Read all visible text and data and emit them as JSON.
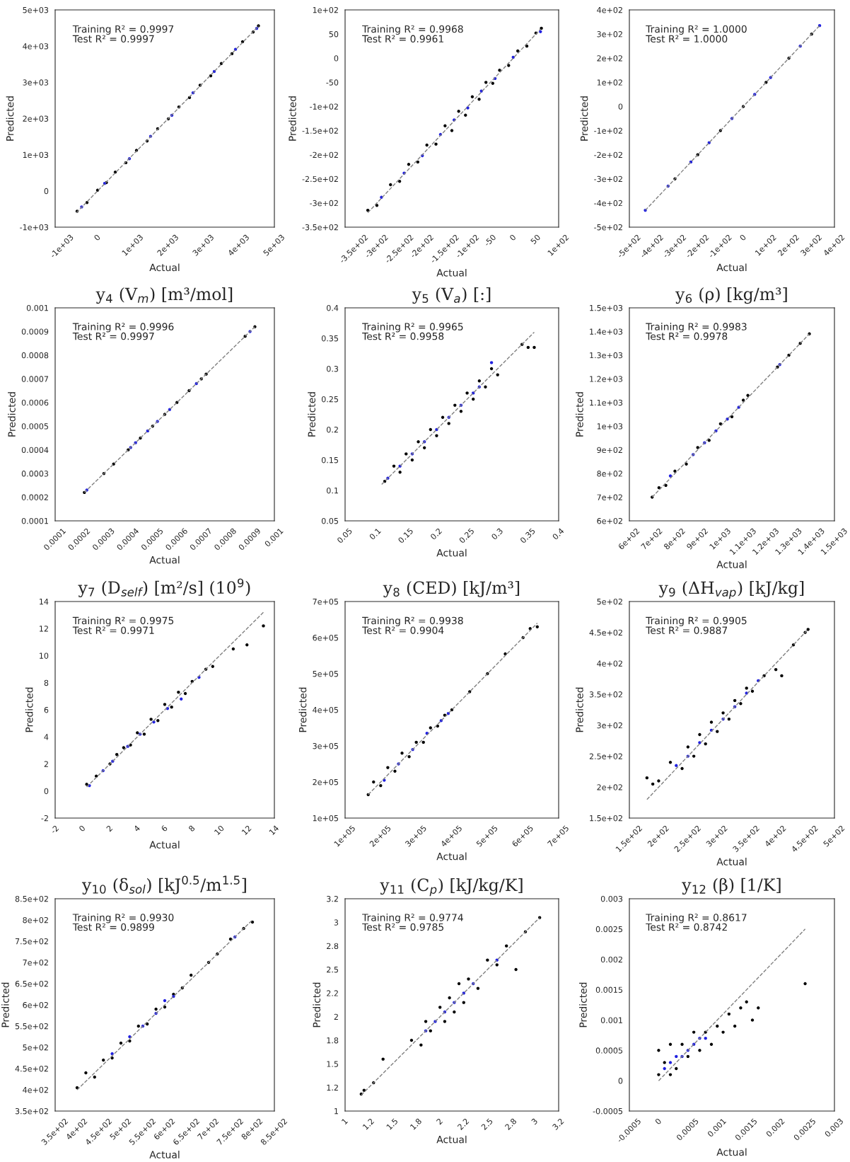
{
  "chart_data": [
    {
      "type": "scatter",
      "xlabel": "Actual",
      "ylabel": "Predicted",
      "marker": "circle",
      "grid": false,
      "legend": false,
      "xlim": [
        -1200,
        5000
      ],
      "ylim": [
        -1000,
        5000
      ],
      "xticks": [
        {
          "value": -1000,
          "label": "-1e+03"
        },
        0,
        {
          "value": 1000,
          "label": "1e+03"
        },
        {
          "value": 2000,
          "label": "2e+03"
        },
        {
          "value": 3000,
          "label": "3e+03"
        },
        {
          "value": 4000,
          "label": "4e+03"
        },
        {
          "value": 5000,
          "label": "5e+03"
        }
      ],
      "yticks": [
        {
          "value": -1000,
          "label": "-1e+03"
        },
        0,
        {
          "value": 1000,
          "label": "1e+03"
        },
        {
          "value": 2000,
          "label": "2e+03"
        },
        {
          "value": 3000,
          "label": "3e+03"
        },
        {
          "value": 4000,
          "label": "4e+03"
        },
        {
          "value": 5000,
          "label": "5e+03"
        }
      ],
      "annotations": [
        "Training R² = 0.9997",
        "Test R² = 0.9997"
      ],
      "series": [
        {
          "type": "line",
          "color": "#808080",
          "line_style": "dashed",
          "marker": "none",
          "x": [
            -600,
            4560
          ],
          "values": [
            -600,
            4560
          ]
        },
        {
          "color": "#000000",
          "x": [
            -580,
            -300,
            0,
            250,
            500,
            800,
            1100,
            1400,
            1700,
            2000,
            2300,
            2600,
            2900,
            3200,
            3500,
            3800,
            4100,
            4400,
            4550
          ],
          "values": [
            -560,
            -320,
            20,
            230,
            520,
            780,
            1120,
            1380,
            1720,
            1990,
            2320,
            2580,
            2920,
            3180,
            3520,
            3790,
            4120,
            4390,
            4560
          ]
        },
        {
          "color": "#2020e0",
          "x": [
            -450,
            200,
            900,
            1500,
            2100,
            2700,
            3300,
            3900,
            4500
          ],
          "values": [
            -440,
            210,
            890,
            1510,
            2090,
            2710,
            3300,
            3910,
            4490
          ]
        }
      ]
    },
    {
      "type": "scatter",
      "xlabel": "Actual",
      "ylabel": "Predicted",
      "marker": "circle",
      "grid": false,
      "legend": false,
      "xlim": [
        -370,
        100
      ],
      "ylim": [
        -350,
        100
      ],
      "xticks": [
        {
          "value": -350,
          "label": "-3.5e+02"
        },
        {
          "value": -300,
          "label": "-3e+02"
        },
        {
          "value": -250,
          "label": "-2.5e+02"
        },
        {
          "value": -200,
          "label": "-2e+02"
        },
        {
          "value": -150,
          "label": "-1.5e+02"
        },
        {
          "value": -100,
          "label": "-1e+02"
        },
        -50,
        0,
        50,
        {
          "value": 100,
          "label": "1e+02"
        }
      ],
      "yticks": [
        {
          "value": -350,
          "label": "-3.5e+02"
        },
        {
          "value": -300,
          "label": "-3e+02"
        },
        {
          "value": -250,
          "label": "-2.5e+02"
        },
        {
          "value": -200,
          "label": "-2e+02"
        },
        {
          "value": -150,
          "label": "-1.5e+02"
        },
        {
          "value": -100,
          "label": "-1e+02"
        },
        -50,
        0,
        50,
        {
          "value": 100,
          "label": "1e+02"
        }
      ],
      "annotations": [
        "Training R² = 0.9968",
        "Test R² = 0.9961"
      ],
      "series": [
        {
          "type": "line",
          "color": "#808080",
          "line_style": "dashed",
          "marker": "none",
          "x": [
            -320,
            60
          ],
          "values": [
            -320,
            60
          ]
        },
        {
          "color": "#000000",
          "x": [
            -320,
            -300,
            -270,
            -250,
            -230,
            -210,
            -190,
            -170,
            -150,
            -135,
            -120,
            -105,
            -90,
            -75,
            -60,
            -45,
            -30,
            -10,
            10,
            30,
            50,
            62
          ],
          "values": [
            -315,
            -305,
            -262,
            -255,
            -220,
            -215,
            -180,
            -178,
            -140,
            -150,
            -110,
            -118,
            -80,
            -85,
            -50,
            -52,
            -25,
            -15,
            15,
            25,
            52,
            62
          ]
        },
        {
          "color": "#2020e0",
          "x": [
            -290,
            -240,
            -200,
            -160,
            -130,
            -100,
            -70,
            -40,
            0,
            60
          ],
          "values": [
            -288,
            -238,
            -202,
            -158,
            -128,
            -103,
            -68,
            -42,
            2,
            55
          ]
        }
      ]
    },
    {
      "type": "scatter",
      "xlabel": "Actual",
      "ylabel": "Predicted",
      "marker": "circle",
      "grid": false,
      "legend": false,
      "xlim": [
        -500,
        400
      ],
      "ylim": [
        -500,
        400
      ],
      "xticks": [
        {
          "value": -500,
          "label": "-5e+02"
        },
        {
          "value": -400,
          "label": "-4e+02"
        },
        {
          "value": -300,
          "label": "-3e+02"
        },
        {
          "value": -200,
          "label": "-2e+02"
        },
        {
          "value": -100,
          "label": "-1e+02"
        },
        0,
        {
          "value": 100,
          "label": "1e+02"
        },
        {
          "value": 200,
          "label": "2e+02"
        },
        {
          "value": 300,
          "label": "3e+02"
        },
        {
          "value": 400,
          "label": "4e+02"
        }
      ],
      "yticks": [
        {
          "value": -500,
          "label": "-5e+02"
        },
        {
          "value": -400,
          "label": "-4e+02"
        },
        {
          "value": -300,
          "label": "-3e+02"
        },
        {
          "value": -200,
          "label": "-2e+02"
        },
        {
          "value": -100,
          "label": "-1e+02"
        },
        0,
        {
          "value": 100,
          "label": "1e+02"
        },
        {
          "value": 200,
          "label": "2e+02"
        },
        {
          "value": 300,
          "label": "3e+02"
        },
        {
          "value": 400,
          "label": "4e+02"
        }
      ],
      "annotations": [
        "Training R² = 1.0000",
        "Test R² = 1.0000"
      ],
      "series": [
        {
          "type": "line",
          "color": "#808080",
          "line_style": "dashed",
          "marker": "none",
          "x": [
            -430,
            335
          ],
          "values": [
            -430,
            335
          ]
        },
        {
          "color": "#000000",
          "x": [
            -300,
            -200,
            -100,
            0,
            100,
            200,
            300
          ],
          "values": [
            -300,
            -200,
            -100,
            0,
            100,
            200,
            300
          ]
        },
        {
          "color": "#2020e0",
          "x": [
            -430,
            -330,
            -230,
            -150,
            -50,
            50,
            120,
            250,
            335
          ],
          "values": [
            -430,
            -330,
            -230,
            -150,
            -50,
            50,
            120,
            250,
            335
          ]
        }
      ]
    },
    {
      "type": "scatter",
      "title": "y$_{4}$ (V$_{m}$) [m³/mol]",
      "xlabel": "Actual",
      "ylabel": "Predicted",
      "marker": "circle",
      "grid": false,
      "legend": false,
      "xlim": [
        0.0001,
        0.001
      ],
      "ylim": [
        0.0001,
        0.001
      ],
      "xticks": [
        0.0001,
        0.0002,
        0.0003,
        0.0004,
        0.0005,
        0.0006,
        0.0007,
        0.0008,
        0.0009,
        0.001
      ],
      "yticks": [
        0.0001,
        0.0002,
        0.0003,
        0.0004,
        0.0005,
        0.0006,
        0.0007,
        0.0008,
        0.0009,
        0.001
      ],
      "annotations": [
        "Training R² = 0.9996",
        "Test R² = 0.9997"
      ],
      "series": [
        {
          "type": "line",
          "color": "#808080",
          "line_style": "dashed",
          "marker": "none",
          "x": [
            0.00022,
            0.00092
          ],
          "values": [
            0.00022,
            0.00092
          ]
        },
        {
          "color": "#000000",
          "x": [
            0.00022,
            0.0003,
            0.00034,
            0.0004,
            0.00045,
            0.0005,
            0.00055,
            0.0006,
            0.00065,
            0.0007,
            0.00072,
            0.00088,
            0.00092
          ],
          "values": [
            0.00022,
            0.0003,
            0.00034,
            0.0004,
            0.00045,
            0.0005,
            0.00055,
            0.0006,
            0.00065,
            0.0007,
            0.00072,
            0.00088,
            0.00092
          ]
        },
        {
          "color": "#2020e0",
          "x": [
            0.00023,
            0.00041,
            0.00043,
            0.00048,
            0.00052,
            0.00057,
            0.00068,
            0.0009
          ],
          "values": [
            0.00023,
            0.00041,
            0.00043,
            0.00048,
            0.00052,
            0.00057,
            0.00068,
            0.0009
          ]
        }
      ]
    },
    {
      "type": "scatter",
      "title": "y$_{5}$ (V$_{a}$) [:]",
      "xlabel": "Actual",
      "ylabel": "Predicted",
      "marker": "circle",
      "grid": false,
      "legend": false,
      "xlim": [
        0.05,
        0.4
      ],
      "ylim": [
        0.05,
        0.4
      ],
      "xticks": [
        0.05,
        0.1,
        0.15,
        0.2,
        0.25,
        0.3,
        0.35,
        0.4
      ],
      "yticks": [
        0.05,
        0.1,
        0.15,
        0.2,
        0.25,
        0.3,
        0.35,
        0.4
      ],
      "annotations": [
        "Training R² = 0.9965",
        "Test R² = 0.9958"
      ],
      "series": [
        {
          "type": "line",
          "color": "#808080",
          "line_style": "dashed",
          "marker": "none",
          "x": [
            0.11,
            0.36
          ],
          "values": [
            0.11,
            0.36
          ]
        },
        {
          "color": "#000000",
          "x": [
            0.115,
            0.13,
            0.14,
            0.15,
            0.16,
            0.17,
            0.18,
            0.19,
            0.2,
            0.21,
            0.22,
            0.23,
            0.24,
            0.25,
            0.26,
            0.27,
            0.28,
            0.29,
            0.3,
            0.34,
            0.35,
            0.36
          ],
          "values": [
            0.115,
            0.14,
            0.13,
            0.16,
            0.15,
            0.18,
            0.17,
            0.2,
            0.19,
            0.22,
            0.21,
            0.24,
            0.23,
            0.26,
            0.25,
            0.28,
            0.27,
            0.3,
            0.29,
            0.34,
            0.335,
            0.335
          ]
        },
        {
          "color": "#2020e0",
          "x": [
            0.12,
            0.14,
            0.16,
            0.18,
            0.2,
            0.22,
            0.24,
            0.26,
            0.27,
            0.29
          ],
          "values": [
            0.12,
            0.14,
            0.16,
            0.18,
            0.2,
            0.22,
            0.24,
            0.26,
            0.27,
            0.31
          ]
        }
      ]
    },
    {
      "type": "scatter",
      "title": "y$_{6}$ (ρ) [kg/m³]",
      "xlabel": "Actual",
      "ylabel": "Predicted",
      "marker": "circle",
      "grid": false,
      "legend": false,
      "xlim": [
        600,
        1500
      ],
      "ylim": [
        600,
        1500
      ],
      "xticks": [
        {
          "value": 600,
          "label": "6e+02"
        },
        {
          "value": 700,
          "label": "7e+02"
        },
        {
          "value": 800,
          "label": "8e+02"
        },
        {
          "value": 900,
          "label": "9e+02"
        },
        {
          "value": 1000,
          "label": "1e+03"
        },
        {
          "value": 1100,
          "label": "1.1e+03"
        },
        {
          "value": 1200,
          "label": "1.2e+03"
        },
        {
          "value": 1300,
          "label": "1.3e+03"
        },
        {
          "value": 1400,
          "label": "1.4e+03"
        },
        {
          "value": 1500,
          "label": "1.5e+03"
        }
      ],
      "yticks": [
        {
          "value": 600,
          "label": "6e+02"
        },
        {
          "value": 700,
          "label": "7e+02"
        },
        {
          "value": 800,
          "label": "8e+02"
        },
        {
          "value": 900,
          "label": "9e+02"
        },
        {
          "value": 1000,
          "label": "1e+03"
        },
        {
          "value": 1100,
          "label": "1.1e+03"
        },
        {
          "value": 1200,
          "label": "1.2e+03"
        },
        {
          "value": 1300,
          "label": "1.3e+03"
        },
        {
          "value": 1400,
          "label": "1.4e+03"
        },
        {
          "value": 1500,
          "label": "1.5e+03"
        }
      ],
      "annotations": [
        "Training R² = 0.9983",
        "Test R² = 0.9978"
      ],
      "series": [
        {
          "type": "line",
          "color": "#808080",
          "line_style": "dashed",
          "marker": "none",
          "x": [
            700,
            1390
          ],
          "values": [
            700,
            1390
          ]
        },
        {
          "color": "#000000",
          "x": [
            700,
            730,
            760,
            800,
            850,
            900,
            950,
            1000,
            1050,
            1100,
            1120,
            1250,
            1300,
            1350,
            1390
          ],
          "values": [
            700,
            740,
            750,
            810,
            840,
            910,
            940,
            1010,
            1040,
            1110,
            1130,
            1250,
            1300,
            1350,
            1390
          ]
        },
        {
          "color": "#2020e0",
          "x": [
            780,
            880,
            930,
            980,
            1030,
            1080,
            1260
          ],
          "values": [
            790,
            880,
            930,
            980,
            1030,
            1080,
            1260
          ]
        }
      ]
    },
    {
      "type": "scatter",
      "title": "y$_{7}$ (D$_{self}$) [m²/s] (10$^{9}$)",
      "xlabel": "Actual",
      "ylabel": "Predicted",
      "marker": "circle",
      "grid": false,
      "legend": false,
      "xlim": [
        -2,
        14
      ],
      "ylim": [
        -2,
        14
      ],
      "xticks": [
        -2,
        0,
        2,
        4,
        6,
        8,
        10,
        12,
        14
      ],
      "yticks": [
        -2,
        0,
        2,
        4,
        6,
        8,
        10,
        12,
        14
      ],
      "annotations": [
        "Training R² = 0.9975",
        "Test R² = 0.9971"
      ],
      "series": [
        {
          "type": "line",
          "color": "#808080",
          "line_style": "dashed",
          "marker": "none",
          "x": [
            0.3,
            13.2
          ],
          "values": [
            0.3,
            13.2
          ]
        },
        {
          "color": "#000000",
          "x": [
            0.3,
            1,
            2,
            2.5,
            3,
            3.5,
            4,
            4.5,
            5,
            5.5,
            6,
            6.5,
            7,
            7.5,
            8,
            9,
            9.5,
            11,
            12,
            13.2
          ],
          "values": [
            0.5,
            1.1,
            2,
            2.7,
            3.2,
            3.4,
            4.3,
            4.2,
            5.3,
            5.2,
            6.4,
            6.2,
            7.3,
            7.2,
            8.1,
            9,
            9.2,
            10.5,
            10.8,
            12.2
          ]
        },
        {
          "color": "#2020e0",
          "x": [
            0.5,
            1.5,
            2.2,
            3.3,
            4.2,
            5.2,
            6.2,
            7.2,
            8.5
          ],
          "values": [
            0.4,
            1.5,
            2.2,
            3.3,
            4.2,
            5.1,
            6.1,
            6.8,
            8.4
          ]
        }
      ]
    },
    {
      "type": "scatter",
      "title": "y$_{8}$ (CED) [kJ/m³]",
      "xlabel": "Actual",
      "ylabel": "Predicted",
      "marker": "circle",
      "grid": false,
      "legend": false,
      "xlim": [
        100000,
        700000
      ],
      "ylim": [
        100000,
        700000
      ],
      "xticks": [
        {
          "value": 100000,
          "label": "1e+05"
        },
        {
          "value": 200000,
          "label": "2e+05"
        },
        {
          "value": 300000,
          "label": "3e+05"
        },
        {
          "value": 400000,
          "label": "4e+05"
        },
        {
          "value": 500000,
          "label": "5e+05"
        },
        {
          "value": 600000,
          "label": "6e+05"
        },
        {
          "value": 700000,
          "label": "7e+05"
        }
      ],
      "yticks": [
        {
          "value": 100000,
          "label": "1e+05"
        },
        {
          "value": 200000,
          "label": "2e+05"
        },
        {
          "value": 300000,
          "label": "3e+05"
        },
        {
          "value": 400000,
          "label": "4e+05"
        },
        {
          "value": 500000,
          "label": "5e+05"
        },
        {
          "value": 600000,
          "label": "6e+05"
        },
        {
          "value": 700000,
          "label": "7e+05"
        }
      ],
      "annotations": [
        "Training R² = 0.9938",
        "Test R² = 0.9904"
      ],
      "series": [
        {
          "type": "line",
          "color": "#808080",
          "line_style": "dashed",
          "marker": "none",
          "x": [
            165000,
            640000
          ],
          "values": [
            165000,
            640000
          ]
        },
        {
          "color": "#000000",
          "x": [
            165000,
            180000,
            200000,
            220000,
            240000,
            260000,
            280000,
            300000,
            320000,
            340000,
            360000,
            380000,
            400000,
            450000,
            500000,
            550000,
            600000,
            620000,
            640000
          ],
          "values": [
            165000,
            200000,
            190000,
            240000,
            230000,
            280000,
            270000,
            310000,
            310000,
            350000,
            355000,
            385000,
            400000,
            450000,
            500000,
            555000,
            600000,
            625000,
            630000
          ]
        },
        {
          "color": "#2020e0",
          "x": [
            210000,
            250000,
            290000,
            330000,
            370000,
            390000
          ],
          "values": [
            205000,
            250000,
            290000,
            335000,
            370000,
            390000
          ]
        }
      ]
    },
    {
      "type": "scatter",
      "title": "y$_{9}$ (ΔH$_{vap}$) [kJ/kg]",
      "xlabel": "Actual",
      "ylabel": "Predicted",
      "marker": "circle",
      "grid": false,
      "legend": false,
      "xlim": [
        150,
        500
      ],
      "ylim": [
        150,
        500
      ],
      "xticks": [
        {
          "value": 150,
          "label": "1.5e+02"
        },
        {
          "value": 200,
          "label": "2e+02"
        },
        {
          "value": 250,
          "label": "2.5e+02"
        },
        {
          "value": 300,
          "label": "3e+02"
        },
        {
          "value": 350,
          "label": "3.5e+02"
        },
        {
          "value": 400,
          "label": "4e+02"
        },
        {
          "value": 450,
          "label": "4.5e+02"
        },
        {
          "value": 500,
          "label": "5e+02"
        }
      ],
      "yticks": [
        {
          "value": 150,
          "label": "1.5e+02"
        },
        {
          "value": 200,
          "label": "2e+02"
        },
        {
          "value": 250,
          "label": "2.5e+02"
        },
        {
          "value": 300,
          "label": "3e+02"
        },
        {
          "value": 350,
          "label": "3.5e+02"
        },
        {
          "value": 400,
          "label": "4e+02"
        },
        {
          "value": 450,
          "label": "4.5e+02"
        },
        {
          "value": 500,
          "label": "5e+02"
        }
      ],
      "annotations": [
        "Training R² = 0.9905",
        "Test R² = 0.9887"
      ],
      "series": [
        {
          "type": "line",
          "color": "#808080",
          "line_style": "dashed",
          "marker": "none",
          "x": [
            180,
            455
          ],
          "values": [
            180,
            455
          ]
        },
        {
          "color": "#000000",
          "x": [
            180,
            190,
            200,
            220,
            240,
            250,
            260,
            270,
            280,
            290,
            300,
            310,
            320,
            330,
            340,
            350,
            360,
            380,
            400,
            410,
            430,
            450,
            455
          ],
          "values": [
            215,
            205,
            210,
            240,
            230,
            265,
            250,
            285,
            270,
            305,
            290,
            320,
            310,
            340,
            335,
            360,
            355,
            380,
            390,
            380,
            430,
            450,
            455
          ]
        },
        {
          "color": "#2020e0",
          "x": [
            230,
            250,
            270,
            290,
            310,
            330,
            350,
            370
          ],
          "values": [
            235,
            250,
            272,
            292,
            310,
            330,
            352,
            372
          ]
        }
      ]
    },
    {
      "type": "scatter",
      "title": "y$_{10}$ (δ$_{sol}$) [kJ$^{0.5}$/m$^{1.5}$]",
      "xlabel": "Actual",
      "ylabel": "Predicted",
      "marker": "circle",
      "grid": false,
      "legend": false,
      "xlim": [
        350,
        850
      ],
      "ylim": [
        350,
        850
      ],
      "xticks": [
        {
          "value": 350,
          "label": "3.5e+02"
        },
        {
          "value": 400,
          "label": "4e+02"
        },
        {
          "value": 450,
          "label": "4.5e+02"
        },
        {
          "value": 500,
          "label": "5e+02"
        },
        {
          "value": 550,
          "label": "5.5e+02"
        },
        {
          "value": 600,
          "label": "6e+02"
        },
        {
          "value": 650,
          "label": "6.5e+02"
        },
        {
          "value": 700,
          "label": "7e+02"
        },
        {
          "value": 750,
          "label": "7.5e+02"
        },
        {
          "value": 800,
          "label": "8e+02"
        },
        {
          "value": 850,
          "label": "8.5e+02"
        }
      ],
      "yticks": [
        {
          "value": 350,
          "label": "3.5e+02"
        },
        {
          "value": 400,
          "label": "4e+02"
        },
        {
          "value": 450,
          "label": "4.5e+02"
        },
        {
          "value": 500,
          "label": "5e+02"
        },
        {
          "value": 550,
          "label": "5.5e+02"
        },
        {
          "value": 600,
          "label": "6e+02"
        },
        {
          "value": 650,
          "label": "6.5e+02"
        },
        {
          "value": 700,
          "label": "7e+02"
        },
        {
          "value": 750,
          "label": "7.5e+02"
        },
        {
          "value": 800,
          "label": "8e+02"
        },
        {
          "value": 850,
          "label": "8.5e+02"
        }
      ],
      "annotations": [
        "Training R² = 0.9930",
        "Test R² = 0.9899"
      ],
      "series": [
        {
          "type": "line",
          "color": "#808080",
          "line_style": "dashed",
          "marker": "none",
          "x": [
            400,
            800
          ],
          "values": [
            400,
            800
          ]
        },
        {
          "color": "#000000",
          "x": [
            400,
            420,
            440,
            460,
            480,
            500,
            520,
            540,
            560,
            580,
            600,
            620,
            640,
            660,
            700,
            720,
            750,
            780,
            800
          ],
          "values": [
            405,
            440,
            430,
            470,
            475,
            510,
            515,
            550,
            555,
            590,
            595,
            625,
            640,
            670,
            700,
            720,
            755,
            780,
            795
          ]
        },
        {
          "color": "#2020e0",
          "x": [
            480,
            520,
            550,
            580,
            600,
            620,
            760
          ],
          "values": [
            485,
            525,
            550,
            580,
            610,
            620,
            760
          ]
        }
      ]
    },
    {
      "type": "scatter",
      "title": "y$_{11}$ (C$_{p}$) [kJ/kg/K]",
      "xlabel": "Actual",
      "ylabel": "Predicted",
      "marker": "circle",
      "grid": false,
      "legend": false,
      "xlim": [
        1,
        3.25
      ],
      "ylim": [
        1,
        3.25
      ],
      "xticks": [
        1,
        {
          "value": 1.25,
          "label": "1.2"
        },
        1.5,
        {
          "value": 1.75,
          "label": "1.8"
        },
        2,
        {
          "value": 2.25,
          "label": "2.2"
        },
        2.5,
        {
          "value": 2.75,
          "label": "2.8"
        },
        3,
        {
          "value": 3.25,
          "label": "3.2"
        }
      ],
      "yticks": [
        1,
        {
          "value": 1.25,
          "label": "1.2"
        },
        1.5,
        {
          "value": 1.75,
          "label": "1.8"
        },
        2,
        {
          "value": 2.25,
          "label": "2.2"
        },
        2.5,
        {
          "value": 2.75,
          "label": "2.8"
        },
        3,
        {
          "value": 3.25,
          "label": "3.2"
        }
      ],
      "annotations": [
        "Training R² = 0.9774",
        "Test R² = 0.9785"
      ],
      "series": [
        {
          "type": "line",
          "color": "#808080",
          "line_style": "dashed",
          "marker": "none",
          "x": [
            1.17,
            3.05
          ],
          "values": [
            1.17,
            3.05
          ]
        },
        {
          "color": "#000000",
          "x": [
            1.17,
            1.2,
            1.3,
            1.4,
            1.7,
            1.8,
            1.85,
            1.9,
            2.0,
            2.05,
            2.1,
            2.15,
            2.2,
            2.25,
            2.3,
            2.4,
            2.5,
            2.6,
            2.7,
            2.8,
            2.9,
            3.05
          ],
          "values": [
            1.18,
            1.22,
            1.3,
            1.55,
            1.75,
            1.7,
            1.95,
            1.85,
            2.1,
            1.95,
            2.2,
            2.05,
            2.35,
            2.15,
            2.4,
            2.3,
            2.6,
            2.55,
            2.75,
            2.5,
            2.9,
            3.05
          ]
        },
        {
          "color": "#2020e0",
          "x": [
            1.85,
            1.95,
            2.05,
            2.15,
            2.25,
            2.35,
            2.6
          ],
          "values": [
            1.85,
            1.95,
            2.05,
            2.15,
            2.25,
            2.35,
            2.6
          ]
        }
      ]
    },
    {
      "type": "scatter",
      "title": "y$_{12}$ (β) [1/K]",
      "xlabel": "Actual",
      "ylabel": "Predicted",
      "marker": "circle",
      "grid": false,
      "legend": false,
      "xlim": [
        -0.0005,
        0.003
      ],
      "ylim": [
        -0.0005,
        0.003
      ],
      "xticks": [
        -0.0005,
        0,
        0.0005,
        0.001,
        0.0015,
        0.002,
        0.0025,
        0.003
      ],
      "yticks": [
        -0.0005,
        0,
        0.0005,
        0.001,
        0.0015,
        0.002,
        0.0025,
        0.003
      ],
      "annotations": [
        "Training R² = 0.8617",
        "Test R² = 0.8742"
      ],
      "series": [
        {
          "type": "line",
          "color": "#808080",
          "line_style": "dashed",
          "marker": "none",
          "x": [
            0,
            0.0025
          ],
          "values": [
            0,
            0.0025
          ]
        },
        {
          "color": "#000000",
          "x": [
            0,
            0,
            0.0001,
            0.0002,
            0.0002,
            0.0003,
            0.0004,
            0.0005,
            0.0006,
            0.0007,
            0.0008,
            0.0009,
            0.001,
            0.0011,
            0.0012,
            0.0013,
            0.0014,
            0.0015,
            0.0016,
            0.0017,
            0.0025
          ],
          "values": [
            0.0001,
            0.0005,
            0.0003,
            0.0001,
            0.0006,
            0.0002,
            0.0006,
            0.0004,
            0.0008,
            0.0005,
            0.0008,
            0.0006,
            0.0009,
            0.0008,
            0.0011,
            0.0009,
            0.0012,
            0.0013,
            0.001,
            0.0012,
            0.0016
          ]
        },
        {
          "color": "#2020e0",
          "x": [
            0.0001,
            0.0002,
            0.0003,
            0.0004,
            0.0005,
            0.0006,
            0.0007,
            0.0008
          ],
          "values": [
            0.0002,
            0.0003,
            0.0004,
            0.0004,
            0.0005,
            0.0006,
            0.0007,
            0.0007
          ]
        }
      ]
    }
  ]
}
